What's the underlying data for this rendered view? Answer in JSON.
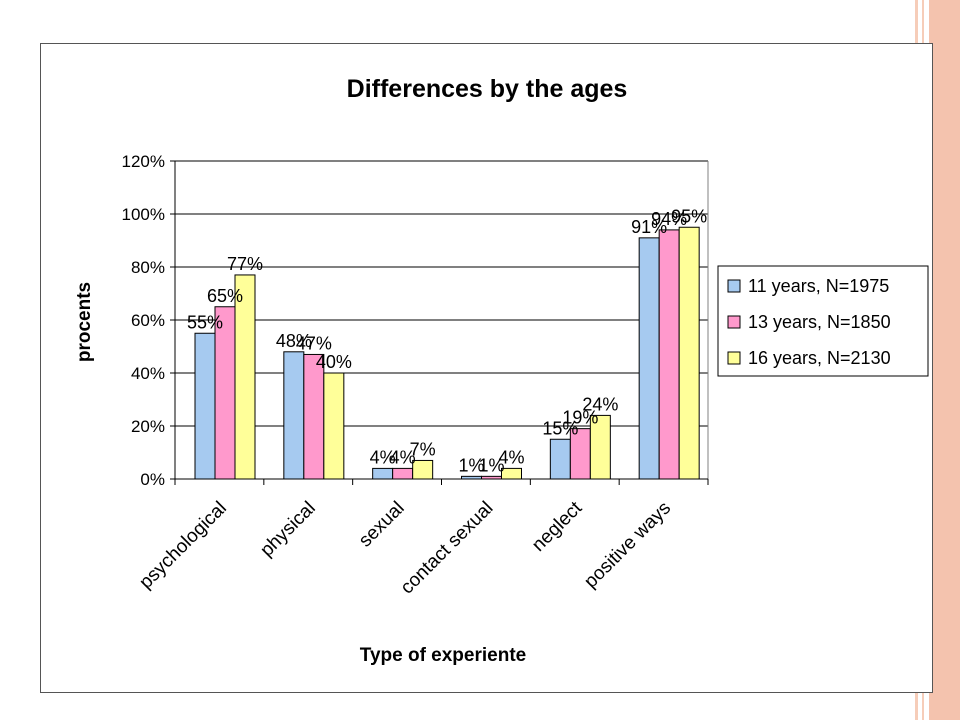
{
  "theme": {
    "stripe_colors": [
      "#f6cdb9",
      "#f2b59c"
    ],
    "series_colors": [
      "#a6caf0",
      "#ff99cc",
      "#ffff99"
    ]
  },
  "chart_data": {
    "type": "bar",
    "title": "Differences by the ages",
    "xlabel": "Type of experiente",
    "ylabel": "procents",
    "ylim": [
      0,
      120
    ],
    "yticks": [
      "0%",
      "20%",
      "40%",
      "60%",
      "80%",
      "100%",
      "120%"
    ],
    "grid": true,
    "legend_position": "right",
    "categories": [
      "psychological",
      "physical",
      "sexual",
      "contact sexual",
      "neglect",
      "positive ways"
    ],
    "series": [
      {
        "name": "11 years, N=1975",
        "values": [
          55,
          48,
          4,
          1,
          15,
          91
        ],
        "labels": [
          "55%",
          "48%",
          "4%",
          "1%",
          "15%",
          "91%"
        ]
      },
      {
        "name": "13 years, N=1850",
        "values": [
          65,
          47,
          4,
          1,
          19,
          94
        ],
        "labels": [
          "65%",
          "47%",
          "4%",
          "1%",
          "19%",
          "94%"
        ]
      },
      {
        "name": "16 years, N=2130",
        "values": [
          77,
          40,
          7,
          4,
          24,
          95
        ],
        "labels": [
          "77%",
          "40%",
          "7%",
          "4%",
          "24%",
          "95%"
        ]
      }
    ]
  }
}
